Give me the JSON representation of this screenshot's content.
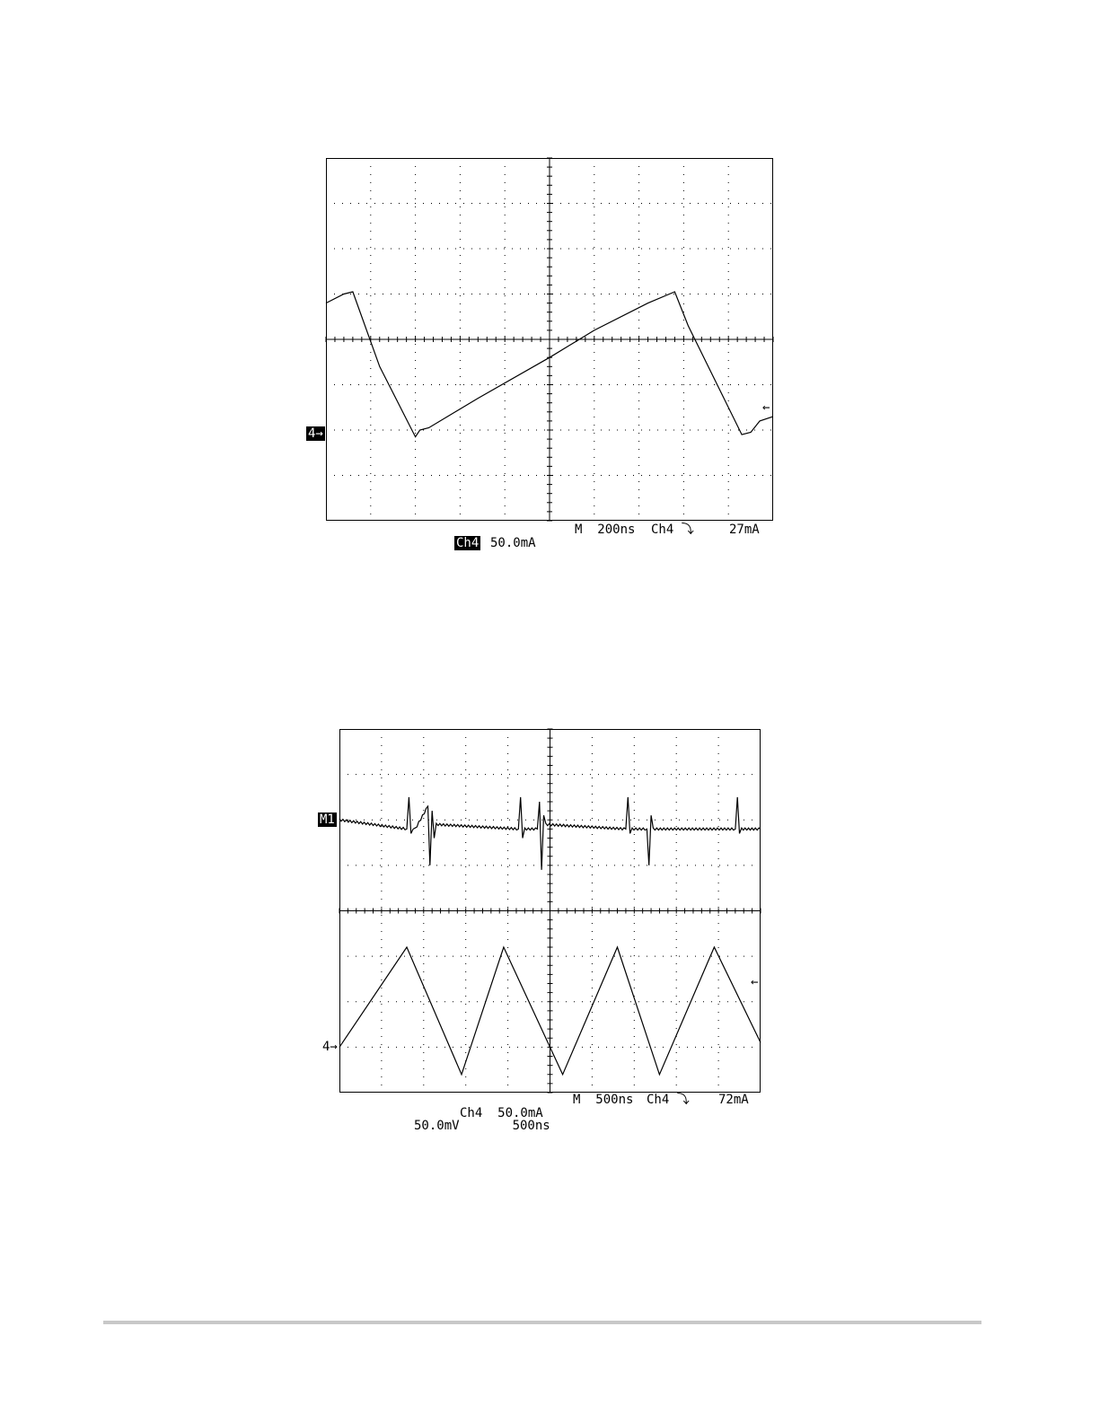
{
  "chart_data": [
    {
      "type": "line",
      "title": "",
      "xlabel": "",
      "ylabel": "",
      "x_unit": "div",
      "y_unit": "div",
      "xlim": [
        -5,
        5
      ],
      "ylim": [
        -4,
        4
      ],
      "grid": true,
      "series": [
        {
          "color": "#000000",
          "x": [
            -5.0,
            -4.6,
            -4.4,
            -3.8,
            -3.0,
            -2.9,
            -2.7,
            -1.6,
            0.0,
            1.0,
            2.2,
            2.8,
            3.1,
            4.3,
            4.5,
            4.7,
            5.0
          ],
          "y": [
            0.8,
            1.0,
            1.05,
            -0.6,
            -2.15,
            -2.0,
            -1.95,
            -1.3,
            -0.4,
            0.2,
            0.8,
            1.05,
            0.3,
            -2.1,
            -2.05,
            -1.8,
            -1.7
          ]
        }
      ],
      "readout": {
        "timebase": "M  200ns",
        "trigger": "Ch4 ⤵",
        "trigger_level": "27mA",
        "ch_badge": "Ch4",
        "ch_scale": "50.0mA",
        "marker_ch": "4→",
        "trig_arrow": "←"
      }
    },
    {
      "type": "line",
      "title": "",
      "xlabel": "",
      "ylabel": "",
      "x_unit": "div",
      "y_unit": "div",
      "xlim": [
        -5,
        5
      ],
      "ylim": [
        -4,
        4
      ],
      "grid": true,
      "series": [
        {
          "color": "#000000",
          "noise": true,
          "x": [
            -5.0,
            -3.4,
            -3.35,
            -3.3,
            -3.25,
            -3.2,
            -2.9,
            -2.85,
            -2.8,
            -2.75,
            -2.7,
            -0.75,
            -0.7,
            -0.65,
            -0.6,
            -0.3,
            -0.25,
            -0.2,
            -0.15,
            -0.1,
            1.8,
            1.85,
            1.9,
            1.95,
            2.3,
            2.35,
            2.4,
            2.45,
            4.4,
            4.45,
            4.5,
            4.55,
            5.0
          ],
          "y": [
            2.0,
            1.8,
            2.5,
            1.7,
            1.8,
            1.8,
            2.3,
            1.0,
            2.2,
            1.6,
            1.9,
            1.8,
            2.5,
            1.6,
            1.8,
            1.8,
            2.4,
            0.9,
            2.1,
            1.9,
            1.8,
            2.5,
            1.7,
            1.8,
            1.8,
            1.0,
            2.1,
            1.8,
            1.8,
            2.5,
            1.7,
            1.8,
            1.8
          ]
        },
        {
          "color": "#000000",
          "x": [
            -5.0,
            -3.4,
            -2.1,
            -1.1,
            0.3,
            1.6,
            2.6,
            3.9,
            5.0
          ],
          "y": [
            -3.0,
            -0.8,
            -3.6,
            -0.8,
            -3.6,
            -0.8,
            -3.6,
            -0.8,
            -2.9
          ]
        }
      ],
      "readout": {
        "timebase": "M  500ns",
        "trigger": "Ch4 ⤵",
        "trigger_level": "72mA",
        "ch_scale_line": "Ch4  50.0mA",
        "math_scale_line": "50.0mV       500ns",
        "marker_math": "M1",
        "marker_ch": "4→",
        "trig_arrow": "←"
      }
    }
  ]
}
